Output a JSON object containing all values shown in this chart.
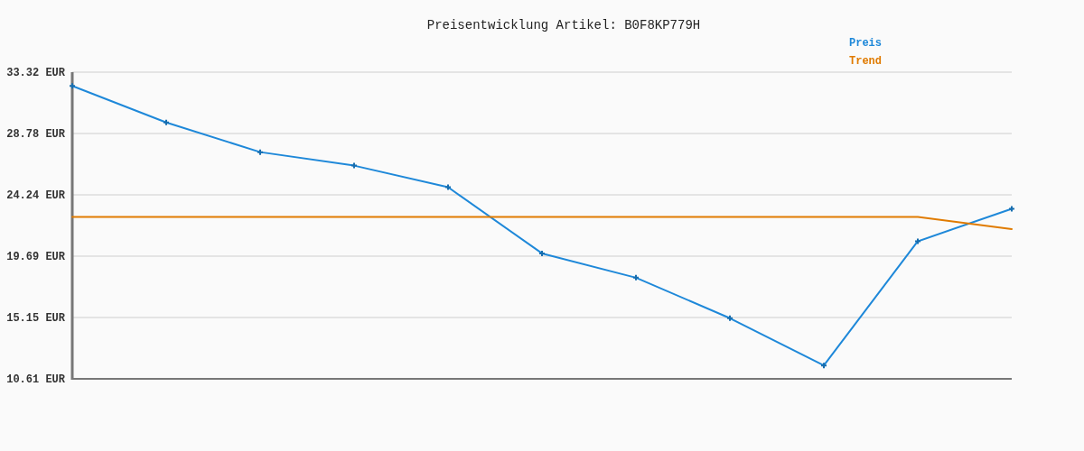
{
  "chart_data": {
    "type": "line",
    "title": "Preisentwicklung Artikel: B0F8KP779H",
    "categories": [
      null,
      null,
      null,
      null,
      null,
      null,
      null,
      null,
      null,
      null,
      null
    ],
    "series": [
      {
        "name": "Preis",
        "color": "#1e88d9",
        "marker": "cross",
        "values": [
          32.3,
          29.6,
          27.4,
          26.4,
          24.8,
          19.9,
          18.1,
          15.1,
          11.6,
          20.8,
          23.2
        ]
      },
      {
        "name": "Trend",
        "color": "#e07b00",
        "marker": "none",
        "values": [
          22.6,
          22.6,
          22.6,
          22.6,
          22.6,
          22.6,
          22.6,
          22.6,
          22.6,
          22.6,
          21.7
        ]
      }
    ],
    "ylim": [
      10.61,
      33.32
    ],
    "yticks": [
      {
        "value": 10.61,
        "label": "10.61 EUR"
      },
      {
        "value": 15.15,
        "label": "15.15 EUR"
      },
      {
        "value": 19.69,
        "label": "19.69 EUR"
      },
      {
        "value": 24.24,
        "label": "24.24 EUR"
      },
      {
        "value": 28.78,
        "label": "28.78 EUR"
      },
      {
        "value": 33.32,
        "label": "33.32 EUR"
      }
    ],
    "grid": "y",
    "legend": "top right",
    "tick_labels": "y",
    "line_style": "solid"
  }
}
